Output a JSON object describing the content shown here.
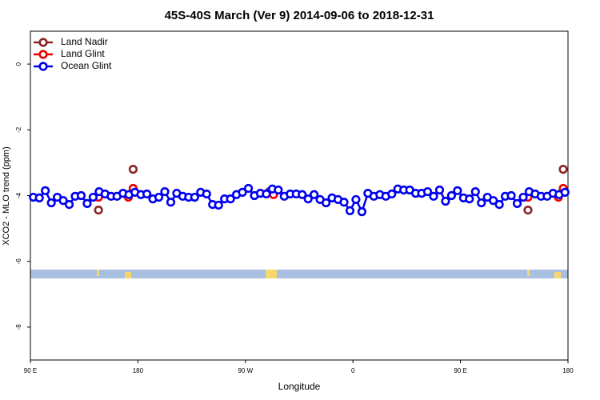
{
  "chart_data": {
    "type": "line",
    "title": "45S-40S March (Ver 9)   2014-09-06 to 2018-12-31",
    "xlabel": "Longitude",
    "ylabel": "XCO2 - MLO trend (ppm)",
    "xlim": [
      90,
      540
    ],
    "ylim": [
      -9,
      1
    ],
    "xticks": [
      {
        "value": 90,
        "label": "90 E"
      },
      {
        "value": 180,
        "label": "180"
      },
      {
        "value": 270,
        "label": "90 W"
      },
      {
        "value": 360,
        "label": "0"
      },
      {
        "value": 450,
        "label": "90 E"
      },
      {
        "value": 540,
        "label": "180"
      }
    ],
    "yticks": [
      0,
      -2,
      -4,
      -6,
      -8
    ],
    "legend": "upper left",
    "series": [
      {
        "name": "Land Nadir",
        "color": "#8b2525",
        "x": [
          147,
          176,
          290,
          506.5,
          536
        ],
        "values": [
          -4.44,
          -3.2,
          -3.88,
          -4.44,
          -3.2
        ]
      },
      {
        "name": "Land Glint",
        "color": "#ee0000",
        "x": [
          147,
          172,
          176,
          293.5,
          506.5,
          532,
          536
        ],
        "values": [
          -4.05,
          -4.05,
          -3.78,
          -3.97,
          -4.05,
          -4.05,
          -3.78
        ]
      },
      {
        "name": "Ocean Glint",
        "color": "#0000ee",
        "x": [
          92.5,
          97.5,
          102.5,
          107.5,
          112.5,
          117.5,
          122.5,
          127.5,
          132.5,
          137.5,
          142.5,
          147.5,
          152.5,
          157.5,
          162.5,
          167.5,
          172.5,
          177.5,
          182.5,
          187.5,
          192.5,
          197.5,
          202.5,
          207.5,
          212.5,
          217.5,
          222.5,
          227.5,
          232.5,
          237.5,
          242.5,
          247.5,
          252.5,
          257.5,
          262.5,
          267.5,
          272.5,
          277.5,
          282.5,
          287.5,
          292.5,
          297.5,
          302.5,
          307.5,
          312.5,
          317.5,
          322.5,
          327.5,
          332.5,
          337.5,
          342.5,
          347.5,
          352.5,
          357.5,
          362.5,
          367.5,
          372.5,
          377.5,
          382.5,
          387.5,
          392.5,
          397.5,
          402.5,
          407.5,
          412.5,
          417.5,
          422.5,
          427.5,
          432.5,
          437.5,
          442.5,
          447.5,
          452.5,
          457.5,
          462.5,
          467.5,
          472.5,
          477.5,
          482.5,
          487.5,
          492.5,
          497.5,
          502.5,
          507.5,
          512.5,
          517.5,
          522.5,
          527.5,
          532.5,
          537.5
        ],
        "values": [
          -4.05,
          -4.07,
          -3.85,
          -4.22,
          -4.05,
          -4.15,
          -4.27,
          -4.02,
          -4.0,
          -4.24,
          -4.05,
          -3.88,
          -3.95,
          -4.02,
          -4.02,
          -3.93,
          -3.97,
          -3.9,
          -3.97,
          -3.95,
          -4.1,
          -4.05,
          -3.88,
          -4.2,
          -3.93,
          -4.02,
          -4.05,
          -4.05,
          -3.9,
          -3.95,
          -4.27,
          -4.29,
          -4.1,
          -4.1,
          -3.97,
          -3.9,
          -3.78,
          -4.0,
          -3.93,
          -3.95,
          -3.8,
          -3.83,
          -4.02,
          -3.95,
          -3.95,
          -3.97,
          -4.1,
          -3.97,
          -4.12,
          -4.22,
          -4.07,
          -4.12,
          -4.2,
          -4.46,
          -4.12,
          -4.49,
          -3.93,
          -4.02,
          -3.97,
          -4.02,
          -3.95,
          -3.8,
          -3.83,
          -3.83,
          -3.93,
          -3.93,
          -3.88,
          -4.02,
          -3.83,
          -4.17,
          -4.0,
          -3.85,
          -4.07,
          -4.1,
          -3.88,
          -4.22,
          -4.05,
          -4.15,
          -4.27,
          -4.02,
          -4.0,
          -4.24,
          -4.05,
          -3.88,
          -3.95,
          -4.02,
          -4.02,
          -3.93,
          -3.97,
          -3.9
        ]
      }
    ]
  }
}
